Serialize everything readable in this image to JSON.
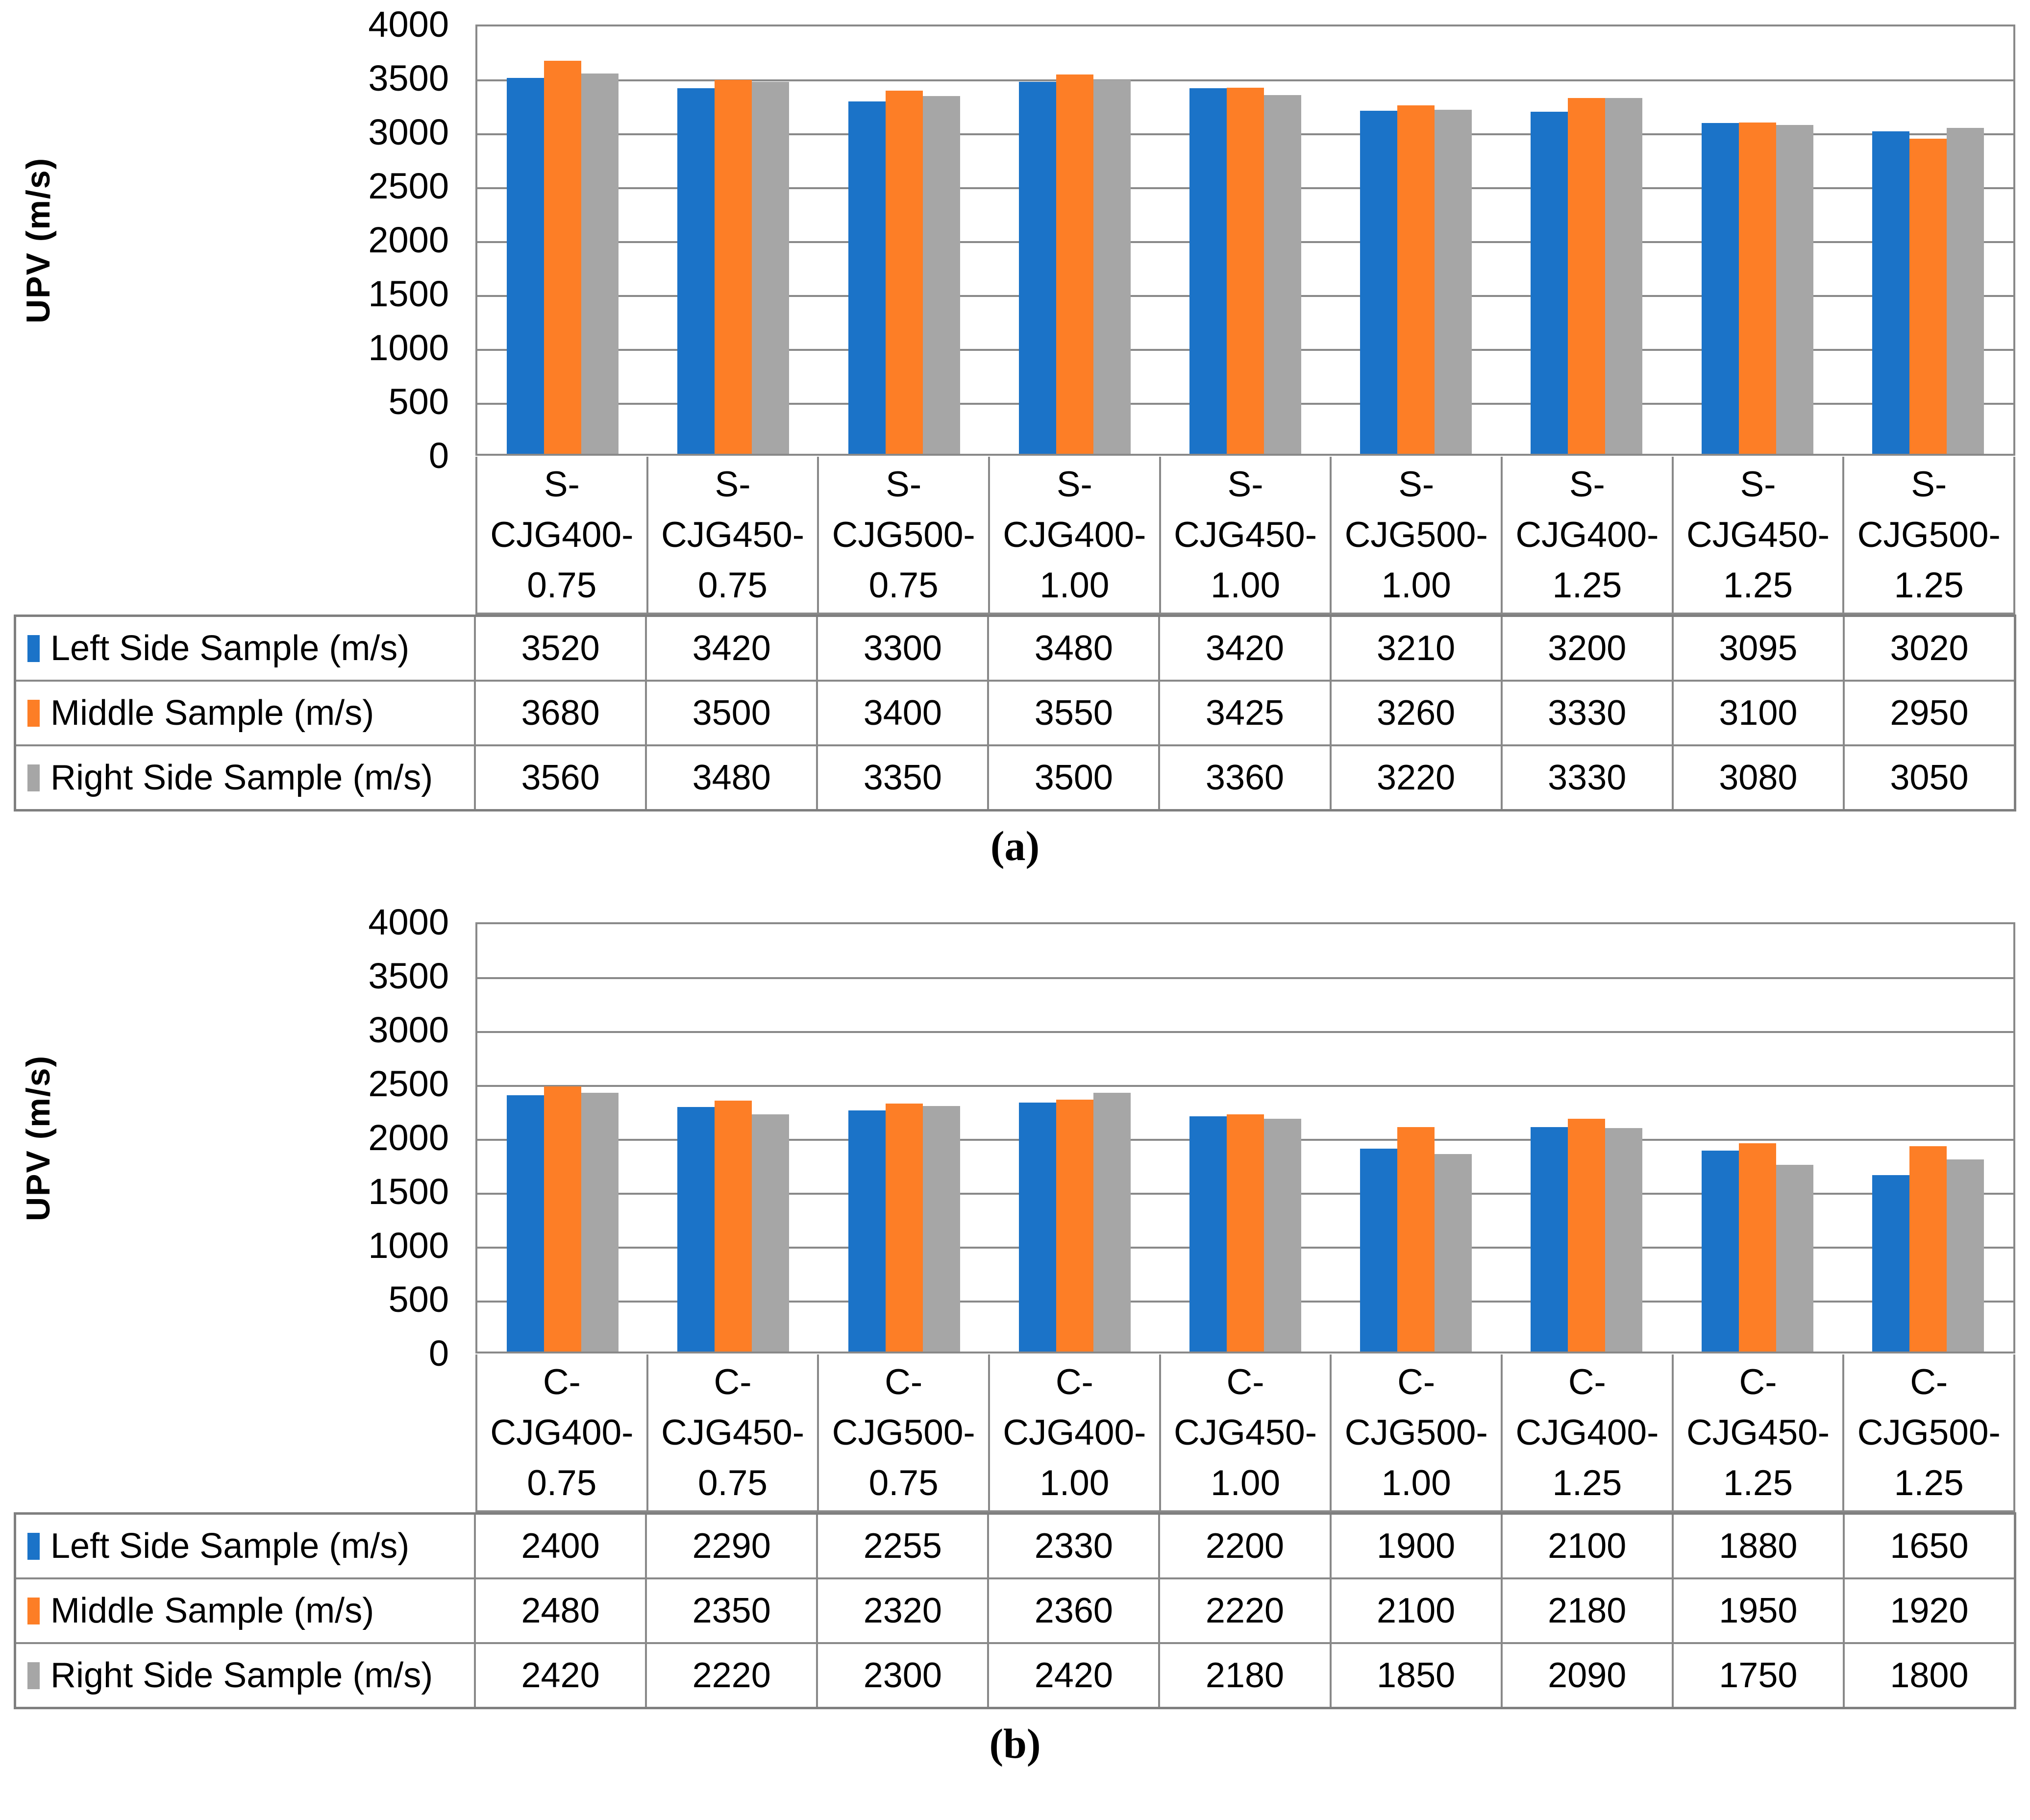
{
  "palette": {
    "series_blue": "#1B73C8",
    "series_orange": "#FD7E26",
    "series_gray": "#A6A6A6",
    "grid_line": "#898989",
    "table_border": "#7F7F7F"
  },
  "chart_data": [
    {
      "panel_label": "(a)",
      "type": "bar",
      "title": "",
      "xlabel": "",
      "ylabel": "UPV (m/s)",
      "ylim": [
        0,
        4000
      ],
      "ytick_step": 500,
      "ytick_labels": [
        "4000",
        "3500",
        "3000",
        "2500",
        "2000",
        "1500",
        "1000",
        "500",
        "0"
      ],
      "grid": true,
      "legend_position": "data-table-left",
      "categories": [
        "S-CJG400-0.75",
        "S-CJG450-0.75",
        "S-CJG500-0.75",
        "S-CJG400-1.00",
        "S-CJG450-1.00",
        "S-CJG500-1.00",
        "S-CJG400-1.25",
        "S-CJG450-1.25",
        "S-CJG500-1.25"
      ],
      "series": [
        {
          "name": "Left Side Sample (m/s)",
          "color": "#1B73C8",
          "values": [
            3520,
            3420,
            3300,
            3480,
            3420,
            3210,
            3200,
            3095,
            3020
          ]
        },
        {
          "name": "Middle Sample (m/s)",
          "color": "#FD7E26",
          "values": [
            3680,
            3500,
            3400,
            3550,
            3425,
            3260,
            3330,
            3100,
            2950
          ]
        },
        {
          "name": "Right Side Sample (m/s)",
          "color": "#A6A6A6",
          "values": [
            3560,
            3480,
            3350,
            3500,
            3360,
            3220,
            3330,
            3080,
            3050
          ]
        }
      ]
    },
    {
      "panel_label": "(b)",
      "type": "bar",
      "title": "",
      "xlabel": "",
      "ylabel": "UPV (m/s)",
      "ylim": [
        0,
        4000
      ],
      "ytick_step": 500,
      "ytick_labels": [
        "4000",
        "3500",
        "3000",
        "2500",
        "2000",
        "1500",
        "1000",
        "500",
        "0"
      ],
      "grid": true,
      "legend_position": "data-table-left",
      "categories": [
        "C-CJG400-0.75",
        "C-CJG450-0.75",
        "C-CJG500-0.75",
        "C-CJG400-1.00",
        "C-CJG450-1.00",
        "C-CJG500-1.00",
        "C-CJG400-1.25",
        "C-CJG450-1.25",
        "C-CJG500-1.25"
      ],
      "series": [
        {
          "name": "Left Side Sample (m/s)",
          "color": "#1B73C8",
          "values": [
            2400,
            2290,
            2255,
            2330,
            2200,
            1900,
            2100,
            1880,
            1650
          ]
        },
        {
          "name": "Middle Sample (m/s)",
          "color": "#FD7E26",
          "values": [
            2480,
            2350,
            2320,
            2360,
            2220,
            2100,
            2180,
            1950,
            1920
          ]
        },
        {
          "name": "Right Side Sample (m/s)",
          "color": "#A6A6A6",
          "values": [
            2420,
            2220,
            2300,
            2420,
            2180,
            1850,
            2090,
            1750,
            1800
          ]
        }
      ]
    }
  ]
}
